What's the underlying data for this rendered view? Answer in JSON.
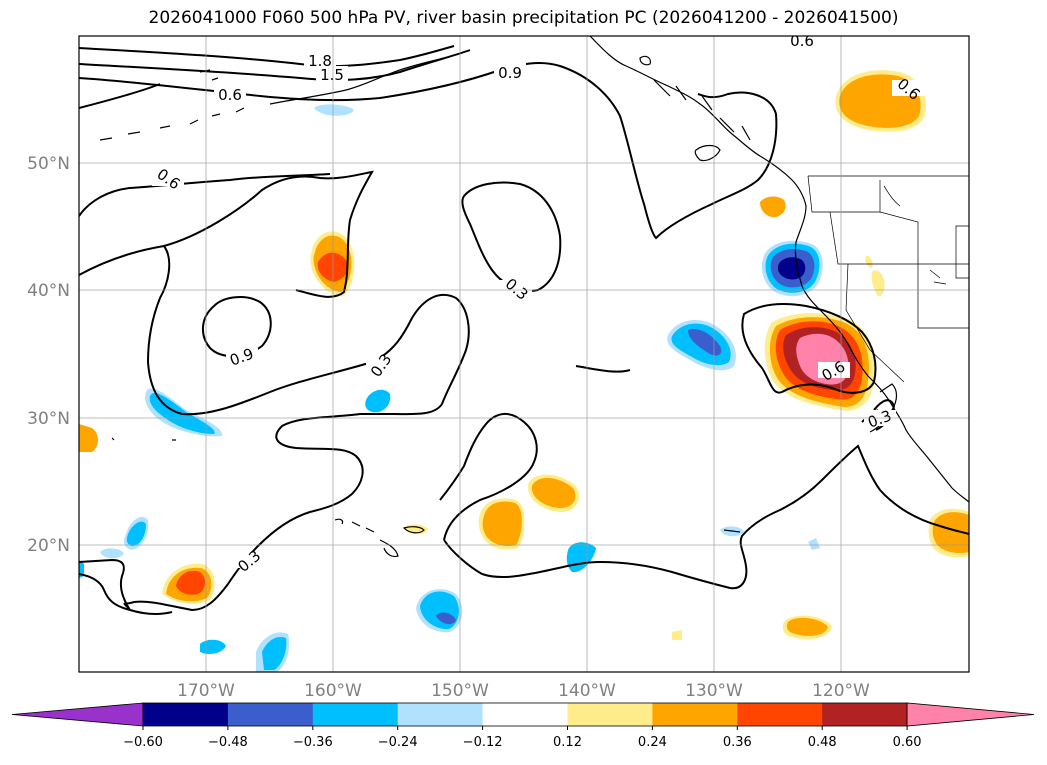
{
  "title": "2026041000 F060 500 hPa PV, river basin precipitation PC (2026041200 - 2026041500)",
  "latitude_labels": [
    "50°N",
    "40°N",
    "30°N",
    "20°N"
  ],
  "longitude_labels": [
    "170°W",
    "160°W",
    "150°W",
    "140°W",
    "130°W",
    "120°W"
  ],
  "contour_labels": [
    "1.8",
    "1.5",
    "0.9",
    "0.6",
    "0.6",
    "0.6",
    "0.3",
    "0.9",
    "0.3",
    "0.3",
    "0.3",
    "0.6",
    "0.6"
  ],
  "colorbar": {
    "ticks": [
      "−0.60",
      "−0.48",
      "−0.36",
      "−0.24",
      "−0.12",
      "0.12",
      "0.24",
      "0.36",
      "0.48",
      "0.60"
    ],
    "colors": [
      "#9932cc",
      "#00008b",
      "#3a5fcd",
      "#00bfff",
      "#b0e2ff",
      "#ffffff",
      "#ffec8b",
      "#ffa500",
      "#ff4500",
      "#b22222",
      "#ff82ab"
    ]
  }
}
